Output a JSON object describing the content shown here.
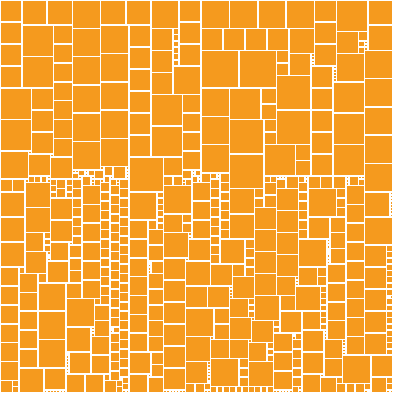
{
  "palette": {
    "background": "#ffffff",
    "tile": "#f59a1e"
  },
  "mosaic": {
    "description_visible_text": ""
  }
}
